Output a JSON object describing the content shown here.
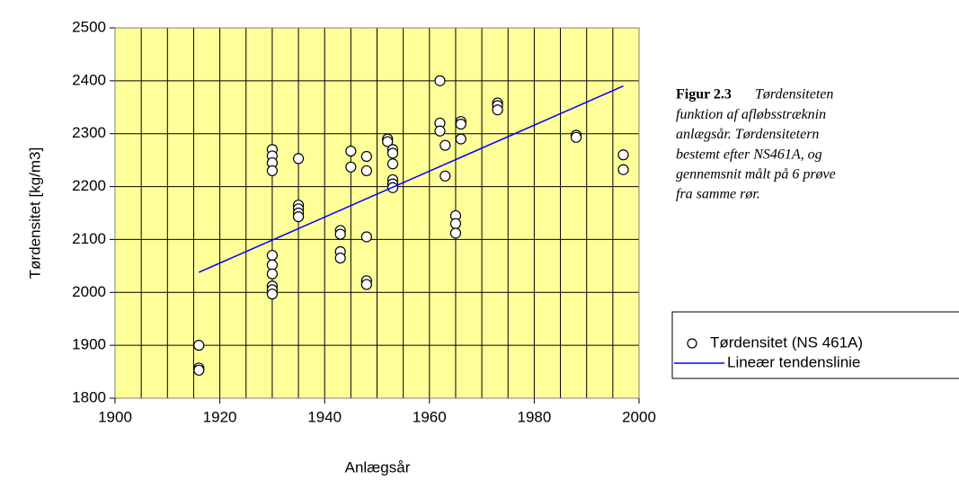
{
  "chart_data": {
    "type": "scatter",
    "x_label": "Anlægsår",
    "y_label": "Tørdensitet [kg/m3]",
    "xlim": [
      1900,
      2000
    ],
    "xticks": [
      1900,
      1920,
      1940,
      1960,
      1980,
      2000
    ],
    "xgrid": [
      1905,
      1910,
      1915,
      1920,
      1925,
      1930,
      1935,
      1940,
      1945,
      1950,
      1955,
      1960,
      1965,
      1970,
      1975,
      1980,
      1985,
      1990,
      1995
    ],
    "ylim": [
      1800,
      2500
    ],
    "yticks": [
      1800,
      1900,
      2000,
      2100,
      2200,
      2300,
      2400,
      2500
    ],
    "grid": true,
    "plot_background": "#ffff99",
    "series": [
      {
        "name": "Tørdensitet (NS 461A)",
        "type": "scatter",
        "color": "#000000",
        "x": [
          1916,
          1916,
          1916,
          1930,
          1930,
          1930,
          1930,
          1930,
          1930,
          1930,
          1930,
          1930,
          1930,
          1935,
          1935,
          1935,
          1935,
          1935,
          1943,
          1943,
          1943,
          1943,
          1945,
          1945,
          1948,
          1948,
          1948,
          1948,
          1948,
          1952,
          1952,
          1953,
          1953,
          1953,
          1953,
          1953,
          1953,
          1962,
          1962,
          1962,
          1963,
          1963,
          1965,
          1965,
          1965,
          1966,
          1966,
          1966,
          1973,
          1973,
          1973,
          1988,
          1988,
          1997,
          1997
        ],
        "values": [
          1900,
          1857,
          1853,
          2270,
          2258,
          2245,
          2230,
          2070,
          2052,
          2035,
          2012,
          2005,
          1997,
          2253,
          2165,
          2158,
          2150,
          2143,
          2117,
          2110,
          2077,
          2065,
          2267,
          2237,
          2257,
          2230,
          2105,
          2022,
          2015,
          2290,
          2285,
          2270,
          2263,
          2243,
          2213,
          2205,
          2198,
          2400,
          2320,
          2305,
          2278,
          2220,
          2145,
          2130,
          2112,
          2323,
          2318,
          2290,
          2358,
          2353,
          2345,
          2297,
          2293,
          2260,
          2232
        ]
      },
      {
        "name": "Lineær tendenslinie",
        "type": "line",
        "color": "#0000ff",
        "x": [
          1916,
          1997
        ],
        "values": [
          2038,
          2390
        ]
      }
    ],
    "caption": {
      "label": "Figur 2.3",
      "lines": [
        "Tørdensiteten",
        "funktion af afløbsstræknin",
        "anlægsår.   Tørdensitetern",
        "bestemt efter NS461A, og",
        "gennemsnit målt på 6 prøve",
        "fra samme rør."
      ]
    }
  }
}
